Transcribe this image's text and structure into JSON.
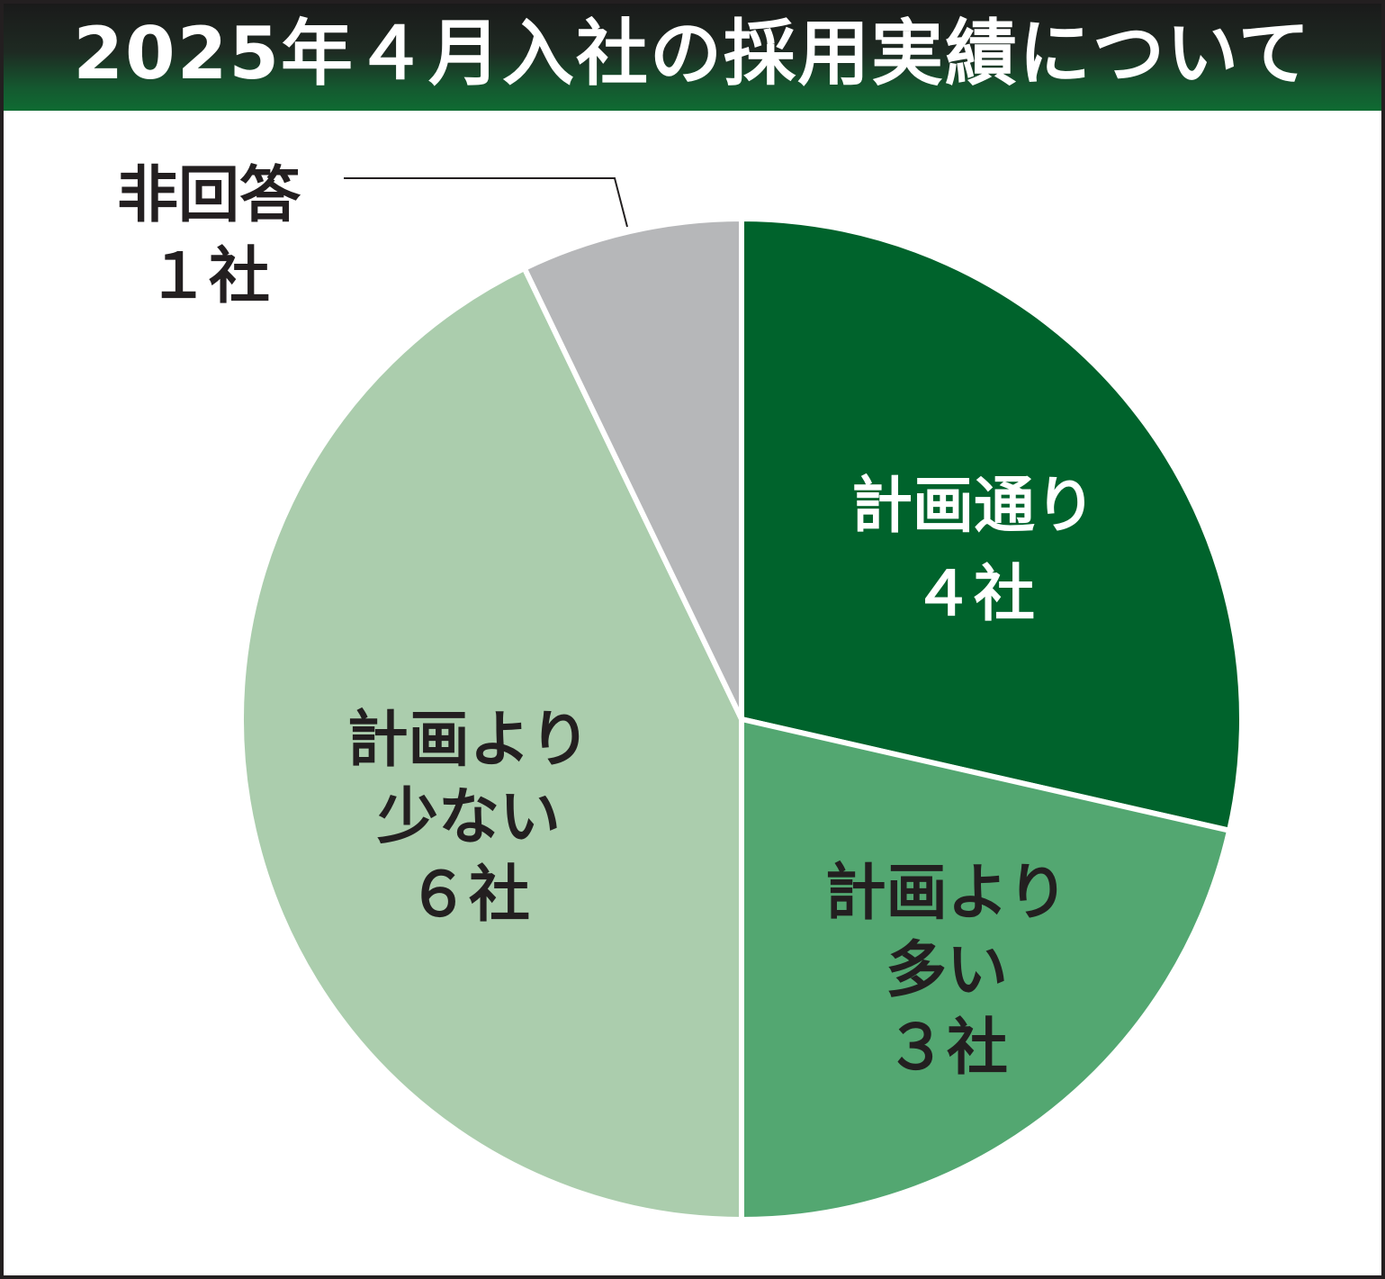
{
  "chart_data": {
    "type": "pie",
    "title": "2025年４月入社の採用実績について",
    "slices": [
      {
        "label_lines": [
          "計画通り",
          "４社"
        ],
        "value": 4,
        "color": "#00632c",
        "text_color": "#ffffff"
      },
      {
        "label_lines": [
          "計画より",
          "多い",
          "３社"
        ],
        "value": 3,
        "color": "#53a771",
        "text_color": "#231f20"
      },
      {
        "label_lines": [
          "計画より",
          "少ない",
          "６社"
        ],
        "value": 6,
        "color": "#abcdad",
        "text_color": "#231f20"
      },
      {
        "label_lines": [
          "非回答",
          "１社"
        ],
        "value": 1,
        "color": "#b6b7b9",
        "text_color": "#231f20"
      }
    ],
    "start_direction": "12 o'clock",
    "direction": "clockwise",
    "legend": "none"
  }
}
